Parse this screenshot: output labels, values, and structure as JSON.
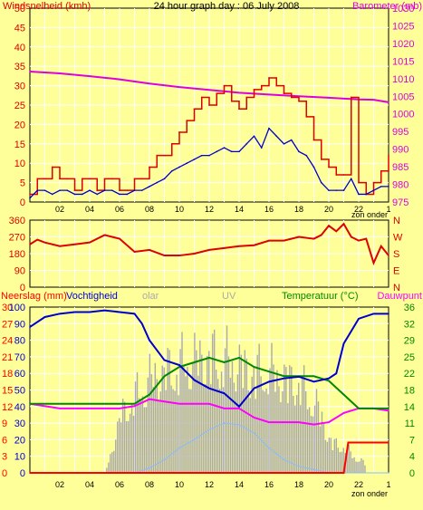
{
  "colors": {
    "background": "#ffff99",
    "wind": "#dd0000",
    "gust_bars": "#dd0000",
    "avg_wind": "#0000cc",
    "barometer": "#dd00dd",
    "direction": "#dd0000",
    "rain": "#ff0000",
    "humidity": "#0000cc",
    "temperature": "#008800",
    "dewpoint": "#ff00ff",
    "solar": "#aaaaaa",
    "uv": "#88bbff",
    "axis": "#000000",
    "grid": "#ffffff"
  },
  "header": {
    "left": "Windsnelheid (kmh)",
    "center": "24 hour graph day : 06 July 2008",
    "right": "Barometer (mb)"
  },
  "bottom_header": {
    "rain": "Neerslag (mm)",
    "humidity": "Vochtigheid",
    "solar": "olar",
    "uv": "UV",
    "temperature": "Temperatuur (°C)",
    "dewpoint": "Dauwpunt"
  },
  "x_ticks": [
    "02",
    "04",
    "06",
    "08",
    "10",
    "12",
    "14",
    "16",
    "18",
    "20",
    "22"
  ],
  "x_end_tick": "1",
  "sunset_label": "zon onder",
  "chart_data": [
    {
      "type": "line",
      "name": "wind",
      "x_ticks": [
        "02",
        "04",
        "06",
        "08",
        "10",
        "12",
        "14",
        "16",
        "18",
        "20",
        "22"
      ],
      "ylim_left": [
        0,
        50
      ],
      "yticks_left": [
        "50",
        "45",
        "40",
        "35",
        "30",
        "25",
        "20",
        "15",
        "10",
        "5",
        "0"
      ],
      "ylim_right": [
        975,
        1030
      ],
      "yticks_right": [
        "1030",
        "1025",
        "1020",
        "1015",
        "1010",
        "1005",
        "1000",
        "995",
        "990",
        "985",
        "980",
        "975"
      ],
      "series": [
        {
          "name": "wind_gust",
          "x": [
            0,
            0.5,
            1,
            1.5,
            2,
            2.5,
            3,
            3.5,
            4,
            4.5,
            5,
            5.5,
            6,
            6.5,
            7,
            7.5,
            8,
            8.5,
            9,
            9.5,
            10,
            10.5,
            11,
            11.5,
            12,
            12.5,
            13,
            13.5,
            14,
            14.5,
            15,
            15.5,
            16,
            16.5,
            17,
            17.5,
            18,
            18.5,
            19,
            19.5,
            20,
            20.5,
            21,
            21.5,
            22,
            22.5,
            23,
            23.5,
            24
          ],
          "values": [
            2,
            6,
            6,
            9,
            6,
            6,
            3,
            6,
            6,
            3,
            6,
            6,
            3,
            3,
            6,
            6,
            9,
            12,
            12,
            15,
            18,
            21,
            24,
            27,
            25,
            28,
            30,
            26,
            24,
            27,
            29,
            30,
            32,
            30,
            28,
            27,
            26,
            22,
            16,
            11,
            9,
            7,
            7,
            27,
            5,
            2,
            5,
            8,
            12
          ]
        },
        {
          "name": "wind_avg",
          "x": [
            0,
            0.5,
            1,
            1.5,
            2,
            2.5,
            3,
            3.5,
            4,
            4.5,
            5,
            5.5,
            6,
            6.5,
            7,
            7.5,
            8,
            8.5,
            9,
            9.5,
            10,
            10.5,
            11,
            11.5,
            12,
            12.5,
            13,
            13.5,
            14,
            14.5,
            15,
            15.5,
            16,
            16.5,
            17,
            17.5,
            18,
            18.5,
            19,
            19.5,
            20,
            20.5,
            21,
            21.5,
            22,
            22.5,
            23,
            23.5,
            24
          ],
          "values": [
            1,
            3,
            3,
            2,
            3,
            3,
            2,
            2,
            3,
            2,
            3,
            3,
            2,
            2,
            3,
            3,
            4,
            5,
            6,
            8,
            9,
            10,
            11,
            12,
            12,
            13,
            14,
            13,
            13,
            15,
            17,
            14,
            19,
            17,
            15,
            16,
            13,
            12,
            9,
            5,
            3,
            3,
            3,
            6,
            2,
            2,
            3,
            4,
            4
          ]
        },
        {
          "name": "barometer",
          "x": [
            0,
            2,
            4,
            6,
            8,
            10,
            12,
            14,
            16,
            18,
            20,
            22,
            23,
            24
          ],
          "values": [
            1012,
            1011.5,
            1010.7,
            1009.8,
            1008.6,
            1007.6,
            1006.8,
            1006.0,
            1005.5,
            1005.0,
            1004.6,
            1004.1,
            1004.0,
            1003.3
          ]
        }
      ]
    },
    {
      "type": "line",
      "name": "wind_direction",
      "ylim": [
        0,
        360
      ],
      "yticks": [
        "360",
        "270",
        "180",
        "90",
        "0"
      ],
      "right_labels": [
        "N",
        "W",
        "S",
        "E",
        "N"
      ],
      "series": [
        {
          "name": "direction",
          "x": [
            0,
            0.5,
            1,
            2,
            3,
            4,
            5,
            6,
            7,
            8,
            9,
            10,
            11,
            12,
            13,
            14,
            15,
            16,
            17,
            18,
            19,
            19.5,
            20,
            20.5,
            21,
            21.5,
            22,
            22.5,
            23,
            23.5,
            24
          ],
          "values": [
            230,
            255,
            240,
            220,
            230,
            240,
            280,
            260,
            190,
            200,
            170,
            170,
            180,
            200,
            210,
            220,
            225,
            250,
            250,
            270,
            260,
            280,
            330,
            300,
            340,
            270,
            250,
            260,
            130,
            220,
            170
          ]
        }
      ]
    },
    {
      "type": "line",
      "name": "humidity_temperature",
      "ylim_left": [
        0,
        100
      ],
      "yticks_left_rain": [
        "30",
        "27",
        "24",
        "21",
        "18",
        "15",
        "12",
        "9",
        "6",
        "3",
        "0"
      ],
      "yticks_left_hum": [
        "100",
        "90",
        "80",
        "70",
        "60",
        "50",
        "40",
        "30",
        "20",
        "10",
        "0"
      ],
      "ylim_right": [
        0,
        36
      ],
      "yticks_right": [
        "36",
        "32",
        "29",
        "25",
        "22",
        "18",
        "14",
        "11",
        "7",
        "4",
        "0"
      ],
      "series": [
        {
          "name": "solar",
          "x": [
            0,
            5,
            5.5,
            6,
            7,
            8,
            9,
            10,
            11,
            12,
            13,
            14,
            15,
            16,
            17,
            18,
            19,
            19.5,
            20,
            21,
            22,
            24
          ],
          "values": [
            0,
            0,
            20,
            45,
            60,
            75,
            80,
            85,
            90,
            92,
            90,
            85,
            80,
            80,
            75,
            70,
            55,
            45,
            25,
            20,
            10,
            0
          ]
        },
        {
          "name": "uv",
          "x": [
            0,
            7,
            8,
            9,
            10,
            11,
            12,
            13,
            14,
            15,
            16,
            17,
            18,
            19,
            20,
            24
          ],
          "values": [
            0,
            0,
            3,
            8,
            15,
            20,
            26,
            30,
            29,
            24,
            15,
            8,
            4,
            2,
            0,
            0
          ]
        },
        {
          "name": "humidity",
          "x": [
            0,
            1,
            2,
            3,
            4,
            5,
            6,
            7,
            7.5,
            8,
            9,
            10,
            11,
            12,
            13,
            14,
            15,
            16,
            17,
            18,
            19,
            20,
            20.5,
            21,
            22,
            23,
            24
          ],
          "values": [
            88,
            94,
            96,
            97,
            97,
            98,
            97,
            96,
            90,
            80,
            68,
            65,
            56,
            51,
            48,
            40,
            51,
            55,
            57,
            58,
            55,
            57,
            60,
            78,
            93,
            96,
            96
          ]
        },
        {
          "name": "temperature",
          "x": [
            0,
            2,
            4,
            6,
            7,
            8,
            9,
            10,
            11,
            12,
            13,
            14,
            15,
            16,
            17,
            18,
            19,
            20,
            21,
            22,
            23,
            24
          ],
          "values": [
            15,
            15,
            15,
            15,
            15,
            17,
            21,
            23,
            24,
            25,
            24,
            25,
            23,
            22,
            21,
            21,
            21,
            20,
            17,
            14,
            14,
            14
          ]
        },
        {
          "name": "dewpoint",
          "x": [
            0,
            2,
            4,
            6,
            7,
            8,
            9,
            10,
            11,
            12,
            13,
            14,
            15,
            16,
            17,
            18,
            19,
            20,
            21,
            22,
            23,
            24
          ],
          "values": [
            15,
            14,
            14,
            14,
            14.5,
            16,
            15.5,
            15,
            15,
            15,
            14,
            14,
            12,
            11,
            11,
            11,
            10.5,
            11,
            13,
            14,
            14,
            13.5
          ]
        },
        {
          "name": "rain",
          "x": [
            0,
            20.5,
            21,
            21.3,
            24
          ],
          "values": [
            0,
            0,
            0,
            5.5,
            5.5
          ]
        }
      ]
    }
  ]
}
